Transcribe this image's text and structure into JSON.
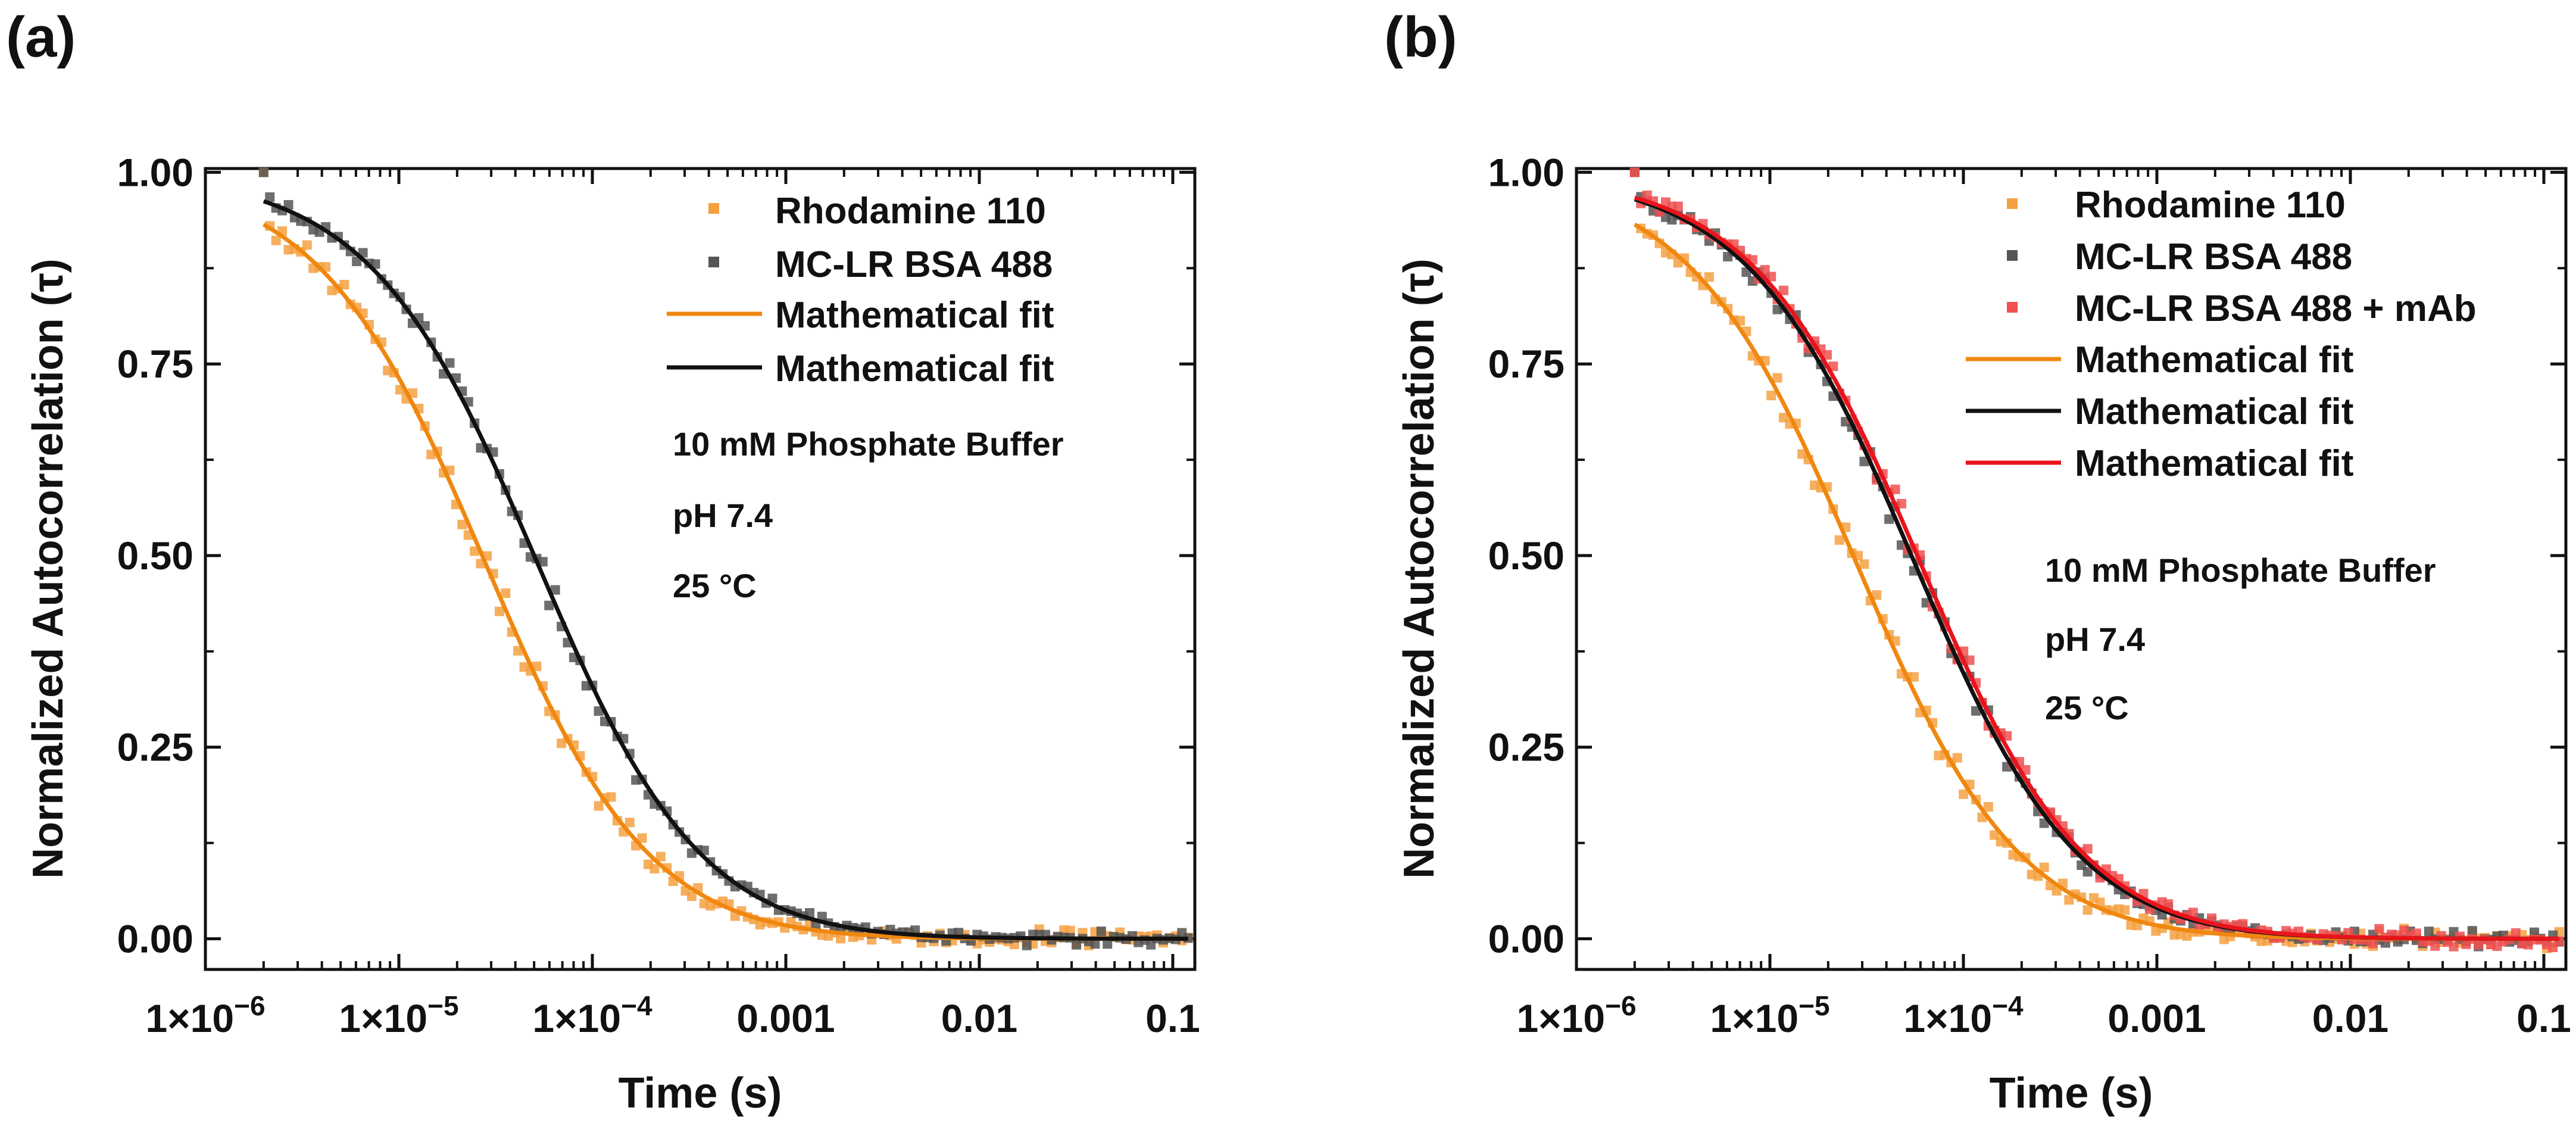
{
  "chart_data": [
    {
      "panel_label": "(a)",
      "type": "scatter",
      "xscale": "log",
      "xlim": [
        1e-06,
        0.13
      ],
      "ylim": [
        0,
        1.0
      ],
      "xlabel": "Time (s)",
      "ylabel": "Normalized Autocorrelation (τ)",
      "x_ticks": [
        {
          "value": 1e-06,
          "mantissa": "1×10",
          "exp": "−6"
        },
        {
          "value": 1e-05,
          "mantissa": "1×10",
          "exp": "−5"
        },
        {
          "value": 0.0001,
          "mantissa": "1×10",
          "exp": "−4"
        },
        {
          "value": 0.001,
          "label": "0.001"
        },
        {
          "value": 0.01,
          "label": "0.01"
        },
        {
          "value": 0.1,
          "label": "0.1"
        }
      ],
      "y_ticks": [
        {
          "value": 0.0,
          "label": "0.00"
        },
        {
          "value": 0.25,
          "label": "0.25"
        },
        {
          "value": 0.5,
          "label": "0.50"
        },
        {
          "value": 0.75,
          "label": "0.75"
        },
        {
          "value": 1.0,
          "label": "1.00"
        }
      ],
      "legend_position": "top-right",
      "series": [
        {
          "name": "Rhodamine 110",
          "kind": "scatter",
          "color": "#f5a142",
          "tau": 2.8e-05,
          "noise": 0.022
        },
        {
          "name": "MC-LR BSA 488",
          "kind": "scatter",
          "color": "#555555",
          "tau": 5.2e-05,
          "noise": 0.018
        },
        {
          "name": "Mathematical fit",
          "kind": "line",
          "color": "#f0870f",
          "tau": 2.8e-05
        },
        {
          "name": "Mathematical fit",
          "kind": "line",
          "color": "#111111",
          "tau": 5.2e-05
        }
      ],
      "annotations": [
        "10 mM Phosphate Buffer",
        "pH 7.4",
        "25 °C"
      ],
      "annotation_position": "right-middle"
    },
    {
      "panel_label": "(b)",
      "type": "scatter",
      "xscale": "log",
      "xlim": [
        1e-06,
        0.13
      ],
      "ylim": [
        0,
        1.0
      ],
      "xlabel": "Time (s)",
      "ylabel": "Normalized Autocorrelation (τ)",
      "x_ticks": [
        {
          "value": 1e-06,
          "mantissa": "1×10",
          "exp": "−6"
        },
        {
          "value": 1e-05,
          "mantissa": "1×10",
          "exp": "−5"
        },
        {
          "value": 0.0001,
          "mantissa": "1×10",
          "exp": "−4"
        },
        {
          "value": 0.001,
          "label": "0.001"
        },
        {
          "value": 0.01,
          "label": "0.01"
        },
        {
          "value": 0.1,
          "label": "0.1"
        }
      ],
      "y_ticks": [
        {
          "value": 0.0,
          "label": "0.00"
        },
        {
          "value": 0.25,
          "label": "0.25"
        },
        {
          "value": 0.5,
          "label": "0.50"
        },
        {
          "value": 0.75,
          "label": "0.75"
        },
        {
          "value": 1.0,
          "label": "1.00"
        }
      ],
      "legend_position": "top-right",
      "series": [
        {
          "name": "Rhodamine 110",
          "kind": "scatter",
          "color": "#f5a142",
          "tau": 2.8e-05,
          "noise": 0.022
        },
        {
          "name": "MC-LR BSA 488",
          "kind": "scatter",
          "color": "#555555",
          "tau": 5.6e-05,
          "noise": 0.018
        },
        {
          "name": "MC-LR BSA 488 + mAb",
          "kind": "scatter",
          "color": "#f05050",
          "tau": 6e-05,
          "noise": 0.02
        },
        {
          "name": "Mathematical fit",
          "kind": "line",
          "color": "#f0870f",
          "tau": 2.8e-05
        },
        {
          "name": "Mathematical fit",
          "kind": "line",
          "color": "#111111",
          "tau": 5.6e-05
        },
        {
          "name": "Mathematical fit",
          "kind": "line",
          "color": "#e8141c",
          "tau": 6e-05
        }
      ],
      "annotations": [
        "10 mM Phosphate Buffer",
        "pH 7.4",
        "25 °C"
      ],
      "annotation_position": "right-middle"
    }
  ]
}
